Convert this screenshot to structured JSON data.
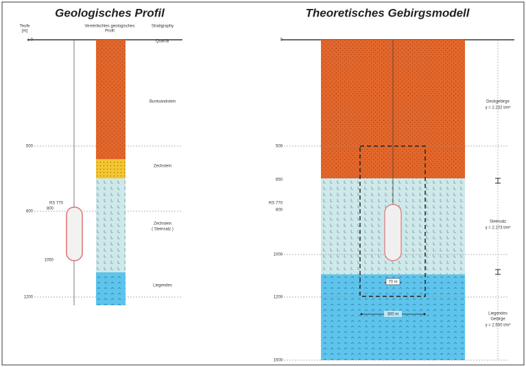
{
  "left": {
    "title": "Geologisches Profil",
    "headers": [
      "Teufe",
      "[m]",
      "Vereinfachtes geologisches",
      "Profil",
      "Stratigraphy"
    ],
    "depth_labels": [
      "± 0",
      "500",
      "800",
      "1200"
    ],
    "cavern_labels": [
      "RS 770",
      "800",
      "1050"
    ],
    "strata": [
      "Quartär",
      "Buntsandstein",
      "Zechstein",
      "Zechstein",
      "( Steinsalz )",
      "Liegendes"
    ]
  },
  "right": {
    "title": "Theoretisches Gebirgsmodell",
    "depth_labels": [
      "0",
      "500",
      "650",
      "RS 770",
      "800",
      "1000",
      "1200",
      "1500"
    ],
    "layers": [
      "Deckgebirge",
      "γ = 2.232 t/m³",
      "Steinsalz",
      "γ = 2.173 t/m³",
      "Liegendes",
      "Gebirge",
      "γ = 2.500 t/m³"
    ],
    "dimensions": [
      "70 m",
      "300 m"
    ]
  }
}
